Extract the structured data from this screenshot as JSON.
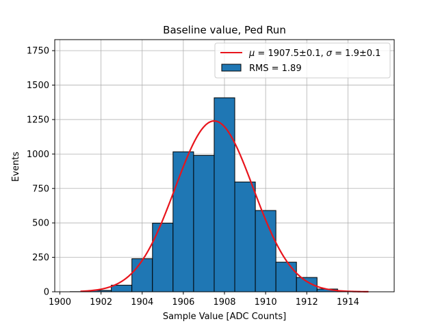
{
  "chart_data": {
    "type": "bar",
    "title": "Baseline value, Ped Run",
    "xlabel": "Sample Value [ADC Counts]",
    "ylabel": "Events",
    "xlim": [
      1899.75,
      1916.25
    ],
    "ylim": [
      0,
      1830
    ],
    "x_ticks": [
      1900,
      1902,
      1904,
      1906,
      1908,
      1910,
      1912,
      1914
    ],
    "y_ticks": [
      0,
      250,
      500,
      750,
      1000,
      1250,
      1500,
      1750
    ],
    "grid": true,
    "legend_position": "top-right",
    "histogram": {
      "name": "RMS = 1.89",
      "color": "#1f77b4",
      "edge_color": "#000000",
      "bin_edges": [
        1900.5,
        1901.5,
        1902.5,
        1903.5,
        1904.5,
        1905.5,
        1906.5,
        1907.5,
        1908.5,
        1909.5,
        1910.5,
        1911.5,
        1912.5,
        1913.5,
        1914.5
      ],
      "counts": [
        1,
        10,
        48,
        240,
        498,
        1016,
        990,
        1408,
        797,
        590,
        215,
        104,
        20,
        3
      ]
    },
    "fit": {
      "name": "$\\mu = 1907.5 \\pm 0.1$, $\\sigma = 1.9 \\pm 0.1$",
      "legend_label": {
        "mu_symbol": "μ",
        "mu_text": " = 1907.5±0.1, ",
        "sigma_symbol": "σ",
        "sigma_text": " = 1.9±0.1"
      },
      "color": "#e8141c",
      "type": "gaussian",
      "mu": 1907.5,
      "sigma": 1.9,
      "amplitude": 1240,
      "x_range": [
        1901,
        1915
      ]
    }
  }
}
